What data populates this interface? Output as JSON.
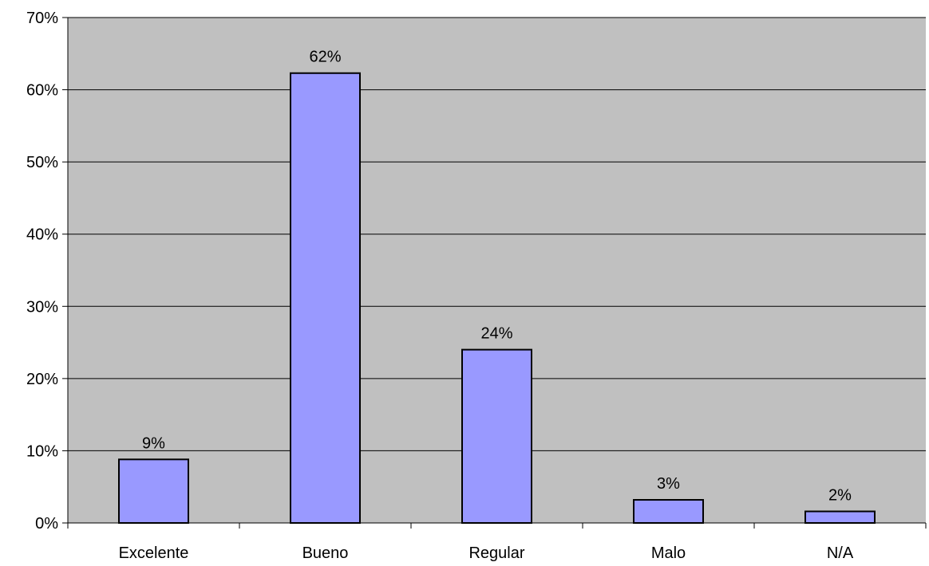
{
  "chart_data": {
    "type": "bar",
    "categories": [
      "Excelente",
      "Bueno",
      "Regular",
      "Malo",
      "N/A"
    ],
    "values": [
      8.8,
      62.3,
      24.0,
      3.2,
      1.6
    ],
    "data_labels": [
      "9%",
      "62%",
      "24%",
      "3%",
      "2%"
    ],
    "ylim": [
      0,
      70
    ],
    "yticks": [
      0,
      10,
      20,
      30,
      40,
      50,
      60,
      70
    ],
    "ytick_labels": [
      "0%",
      "10%",
      "20%",
      "30%",
      "40%",
      "50%",
      "60%",
      "70%"
    ],
    "title": "",
    "xlabel": "",
    "ylabel": "",
    "grid": true,
    "legend": "none",
    "colors": {
      "plot_background": "#C0C0C0",
      "bar_fill": "#9999FF",
      "bar_stroke": "#000000",
      "gridline": "#000000"
    }
  }
}
